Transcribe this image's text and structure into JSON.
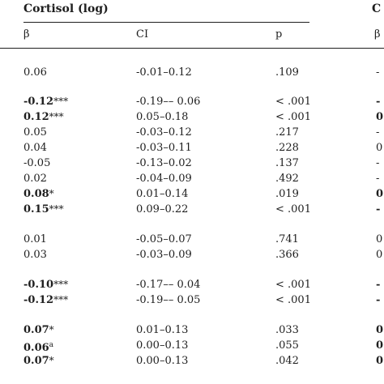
{
  "table": {
    "group_title": "Cortisol (log)",
    "next_group_title_fragment": "C",
    "columns": {
      "beta": "β",
      "ci": "CI",
      "p": "p",
      "next_fragment": "β"
    },
    "rows": [
      {
        "beta": "0.06",
        "mark": "",
        "bold": false,
        "ci": "-0.01–0.12",
        "p": ".109",
        "next": "-"
      },
      {
        "beta": "-0.12",
        "mark": "***",
        "bold": true,
        "ci": "-0.19–– 0.06",
        "p": "< .001",
        "next": "-"
      },
      {
        "beta": "0.12",
        "mark": "***",
        "bold": true,
        "ci": "0.05–0.18",
        "p": "< .001",
        "next": "0"
      },
      {
        "beta": "0.05",
        "mark": "",
        "bold": false,
        "ci": "-0.03–0.12",
        "p": ".217",
        "next": "-"
      },
      {
        "beta": "0.04",
        "mark": "",
        "bold": false,
        "ci": "-0.03–0.11",
        "p": ".228",
        "next": "0"
      },
      {
        "beta": "-0.05",
        "mark": "",
        "bold": false,
        "ci": "-0.13–0.02",
        "p": ".137",
        "next": "-"
      },
      {
        "beta": "0.02",
        "mark": "",
        "bold": false,
        "ci": "-0.04–0.09",
        "p": ".492",
        "next": "-"
      },
      {
        "beta": "0.08",
        "mark": "*",
        "bold": true,
        "ci": "0.01–0.14",
        "p": ".019",
        "next": "0"
      },
      {
        "beta": "0.15",
        "mark": "***",
        "bold": true,
        "ci": "0.09–0.22",
        "p": "< .001",
        "next": "-"
      },
      {
        "beta": "0.01",
        "mark": "",
        "bold": false,
        "ci": "-0.05–0.07",
        "p": ".741",
        "next": "0"
      },
      {
        "beta": "0.03",
        "mark": "",
        "bold": false,
        "ci": "-0.03–0.09",
        "p": ".366",
        "next": "0"
      },
      {
        "beta": "-0.10",
        "mark": "***",
        "bold": true,
        "ci": "-0.17–– 0.04",
        "p": "< .001",
        "next": "-"
      },
      {
        "beta": "-0.12",
        "mark": "***",
        "bold": true,
        "ci": "-0.19–– 0.05",
        "p": "< .001",
        "next": "-"
      },
      {
        "beta": "0.07",
        "mark": "*",
        "bold": true,
        "ci": "0.01–0.13",
        "p": ".033",
        "next": "0"
      },
      {
        "beta": "0.06",
        "mark": "a",
        "bold": true,
        "ci": "0.00–0.13",
        "p": ".055",
        "next": "0"
      },
      {
        "beta": "0.07",
        "mark": "*",
        "bold": true,
        "ci": "0.00–0.13",
        "p": ".042",
        "next": "0"
      }
    ]
  }
}
